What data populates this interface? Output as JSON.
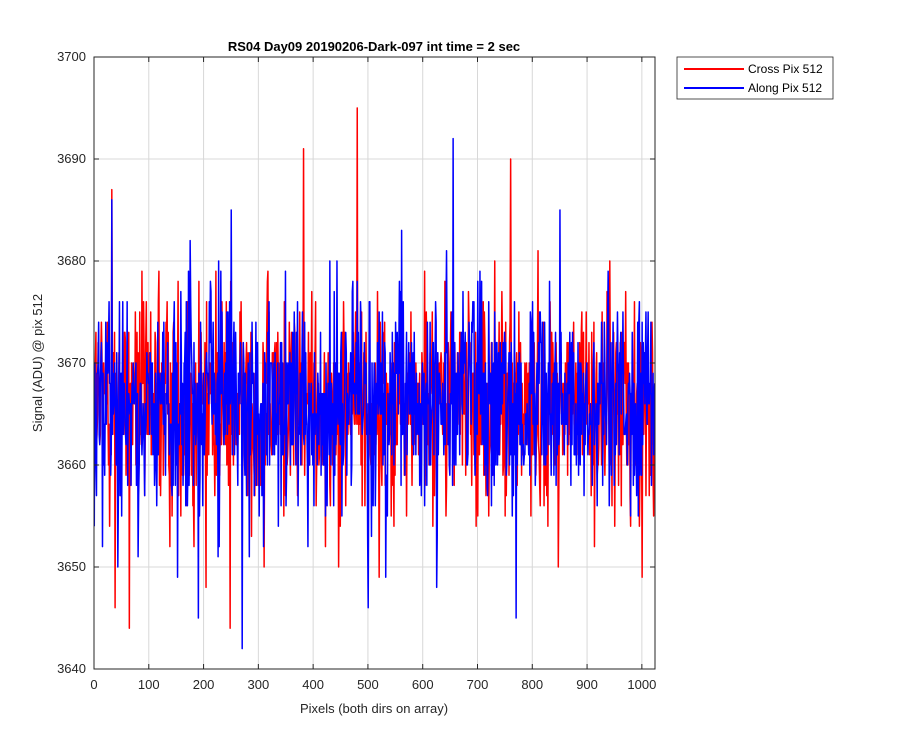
{
  "chart_data": {
    "type": "line",
    "title": "RS04 Day09 20190206-Dark-097 int time = 2 sec",
    "xlabel": "Pixels (both dirs on array)",
    "ylabel": "Signal (ADU) @ pix 512",
    "xlim": [
      0,
      1024
    ],
    "ylim": [
      3640,
      3700
    ],
    "xticks": [
      0,
      100,
      200,
      300,
      400,
      500,
      600,
      700,
      800,
      900,
      1000
    ],
    "yticks": [
      3640,
      3650,
      3660,
      3670,
      3680,
      3690,
      3700
    ],
    "grid": true,
    "legend_position": "outside-top-right",
    "series": [
      {
        "name": "Cross Pix 512",
        "color": "#ff0000",
        "approx_mean": 3666,
        "approx_range": [
          3644,
          3695
        ],
        "sampled_x": [
          0,
          10,
          24,
          32,
          38,
          50,
          64,
          72,
          92,
          118,
          140,
          170,
          182,
          204,
          222,
          248,
          276,
          300,
          310,
          330,
          352,
          382,
          400,
          430,
          455,
          480,
          500,
          520,
          555,
          600,
          640,
          690,
          720,
          760,
          790,
          830,
          860,
          900,
          940,
          970,
          1000,
          1024
        ],
        "sampled_y": [
          3667,
          3662,
          3674,
          3687,
          3646,
          3665,
          3644,
          3668,
          3657,
          3679,
          3658,
          3676,
          3652,
          3648,
          3679,
          3644,
          3668,
          3662,
          3650,
          3672,
          3660,
          3691,
          3665,
          3658,
          3676,
          3695,
          3660,
          3649,
          3670,
          3664,
          3678,
          3668,
          3655,
          3690,
          3662,
          3666,
          3670,
          3664,
          3660,
          3677,
          3649,
          3668
        ]
      },
      {
        "name": "Along Pix 512",
        "color": "#0000ff",
        "approx_mean": 3666,
        "approx_range": [
          3642,
          3692
        ],
        "sampled_x": [
          0,
          12,
          22,
          32,
          48,
          60,
          80,
          100,
          130,
          152,
          175,
          190,
          212,
          228,
          250,
          270,
          290,
          320,
          350,
          380,
          410,
          440,
          470,
          500,
          530,
          560,
          600,
          625,
          655,
          680,
          700,
          730,
          770,
          800,
          830,
          850,
          880,
          920,
          960,
          990,
          1024
        ],
        "sampled_y": [
          3654,
          3670,
          3664,
          3686,
          3660,
          3676,
          3651,
          3668,
          3659,
          3649,
          3682,
          3645,
          3678,
          3652,
          3685,
          3642,
          3668,
          3660,
          3656,
          3675,
          3662,
          3670,
          3660,
          3646,
          3672,
          3658,
          3666,
          3648,
          3692,
          3660,
          3678,
          3658,
          3645,
          3676,
          3662,
          3685,
          3660,
          3666,
          3670,
          3657,
          3668
        ]
      }
    ]
  }
}
